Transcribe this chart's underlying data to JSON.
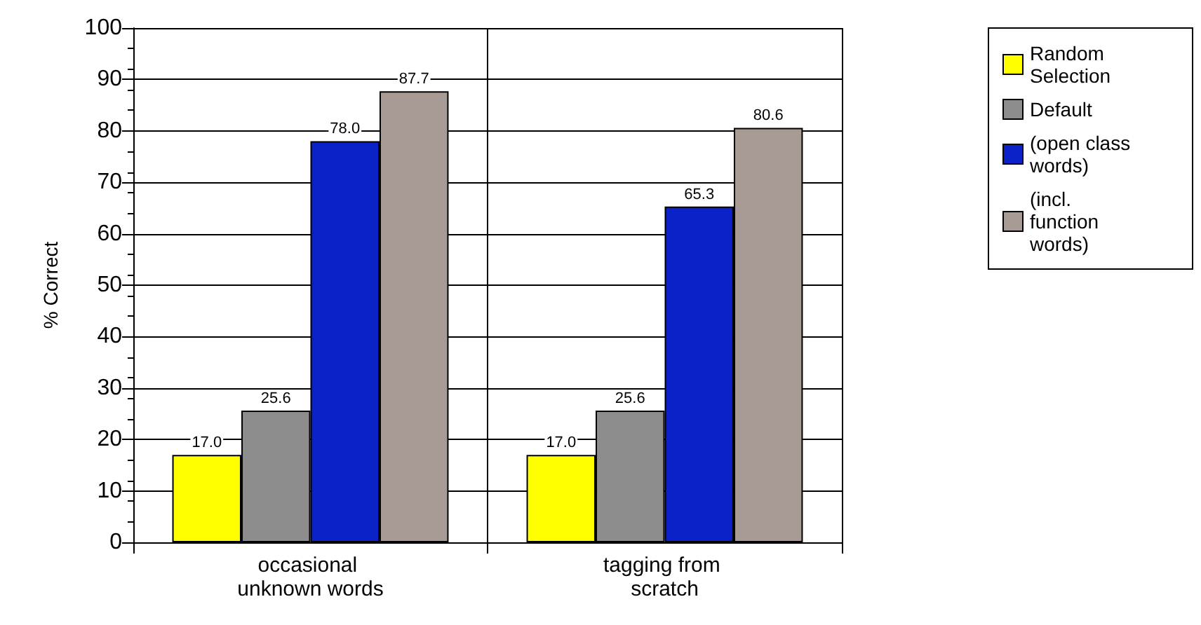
{
  "chart_data": {
    "type": "bar",
    "ylabel": "% Correct",
    "categories": [
      "occasional unknown words",
      "tagging from scratch"
    ],
    "series": [
      {
        "name": "Random Selection",
        "color": "#ffff00",
        "values": [
          17.0,
          17.0
        ],
        "value_labels": [
          "17.0",
          "17.0"
        ]
      },
      {
        "name": "Default",
        "color": "#8c8c8c",
        "values": [
          25.6,
          25.6
        ],
        "value_labels": [
          "25.6",
          "25.6"
        ]
      },
      {
        "name": "(open class words)",
        "color": "#0a22c8",
        "values": [
          78.0,
          65.3
        ],
        "value_labels": [
          "78.0",
          "65.3"
        ]
      },
      {
        "name": "(incl. function words)",
        "color": "#a89a94",
        "values": [
          87.7,
          80.6
        ],
        "value_labels": [
          "87.7",
          "80.6"
        ]
      }
    ],
    "ylim": [
      0,
      100
    ],
    "yticks": [
      0,
      10,
      20,
      30,
      40,
      50,
      60,
      70,
      80,
      90,
      100
    ],
    "grid": true,
    "legend": "right"
  }
}
